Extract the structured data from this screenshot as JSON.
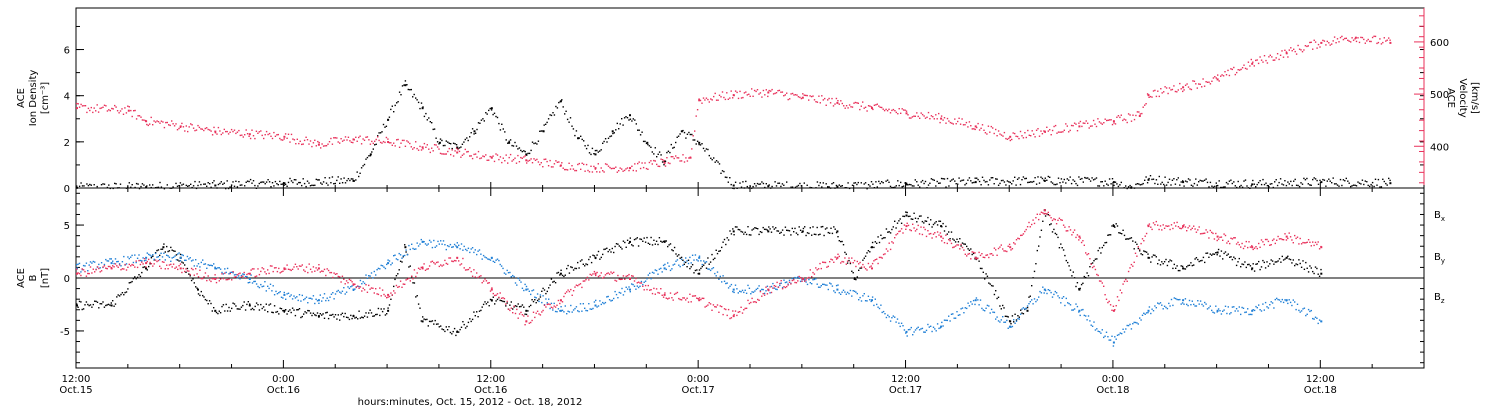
{
  "colors": {
    "black": "#000000",
    "red": "#e8305a",
    "blue": "#1f7fd6"
  },
  "chart_data": [
    {
      "type": "scatter",
      "panel": "top",
      "left_axis": {
        "label_lines": [
          "ACE",
          "Ion Density",
          "[cm⁻³]"
        ],
        "ylim": [
          0,
          7.8
        ],
        "ticks": [
          0,
          2,
          4,
          6
        ],
        "tick_labels": [
          "0",
          "2",
          "4",
          "6"
        ]
      },
      "right_axis": {
        "label_lines": [
          "ACE",
          "Velocity",
          "[km/s]"
        ],
        "ylim": [
          320,
          665
        ],
        "ticks": [
          400,
          500,
          600
        ],
        "tick_labels": [
          "400",
          "500",
          "600"
        ],
        "color": "#e8305a"
      },
      "xlim": [
        0,
        78
      ],
      "series": [
        {
          "axis": "left",
          "color": "#000000",
          "x": [
            0,
            4,
            8,
            12,
            16,
            17,
            18,
            19,
            20,
            21,
            22,
            23,
            24,
            25,
            26,
            27,
            28,
            29,
            30,
            31,
            32,
            33,
            34,
            35,
            36,
            38,
            40,
            44,
            48,
            52,
            56,
            60,
            61,
            62,
            64,
            68,
            72,
            76
          ],
          "y": [
            0.05,
            0.08,
            0.15,
            0.25,
            0.35,
            1.5,
            3.0,
            4.5,
            3.5,
            2.0,
            1.8,
            2.5,
            3.5,
            2.0,
            1.5,
            2.5,
            3.8,
            2.2,
            1.5,
            2.5,
            3.2,
            2.0,
            1.2,
            2.5,
            2.0,
            0.15,
            0.12,
            0.1,
            0.2,
            0.3,
            0.35,
            0.3,
            0.05,
            0.4,
            0.3,
            0.2,
            0.3,
            0.25
          ]
        },
        {
          "axis": "right",
          "color": "#e8305a",
          "x": [
            0,
            3,
            4,
            6,
            8,
            10,
            12,
            14,
            16,
            18,
            20,
            22,
            24,
            26,
            28,
            30,
            32,
            34,
            35.5,
            36,
            38,
            40,
            42,
            44,
            46,
            48,
            50,
            52,
            54,
            56,
            58,
            60,
            61.5,
            62,
            64,
            66,
            68,
            70,
            72,
            74,
            76
          ],
          "y": [
            475,
            470,
            450,
            440,
            430,
            425,
            420,
            405,
            415,
            410,
            400,
            390,
            380,
            375,
            365,
            360,
            360,
            370,
            380,
            490,
            500,
            505,
            495,
            485,
            475,
            465,
            455,
            440,
            420,
            430,
            440,
            450,
            460,
            500,
            515,
            530,
            560,
            580,
            600,
            610,
            600
          ]
        }
      ]
    },
    {
      "type": "scatter",
      "panel": "bottom",
      "left_axis": {
        "label_lines": [
          "ACE",
          "B",
          "[nT]"
        ],
        "ylim": [
          -8.5,
          8.5
        ],
        "ticks": [
          -5,
          0,
          5
        ],
        "tick_labels": [
          "-5",
          "0",
          "5"
        ]
      },
      "xlim": [
        0,
        78
      ],
      "xticks": [
        0,
        12,
        24,
        36,
        48,
        60,
        72
      ],
      "xtick_labels_top": [
        "12:00",
        "0:00",
        "12:00",
        "0:00",
        "12:00",
        "0:00",
        "12:00"
      ],
      "xtick_labels_bottom": [
        "Oct.15",
        "Oct.16",
        "Oct.16",
        "Oct.17",
        "Oct.17",
        "Oct.18",
        "Oct.18"
      ],
      "xlabel": "hours:minutes, Oct. 15, 2012 - Oct. 18, 2012",
      "legend": [
        "B",
        "B",
        "B"
      ],
      "legend_subscripts": [
        "x",
        "y",
        "z"
      ],
      "legend_placement": "right",
      "series": [
        {
          "name": "Bx",
          "color": "#000000",
          "x": [
            0,
            2,
            4,
            5,
            6,
            7,
            8,
            10,
            12,
            14,
            16,
            18,
            19,
            20,
            22,
            24,
            26,
            28,
            30,
            32,
            34,
            36,
            38,
            40,
            42,
            44,
            45,
            46,
            48,
            50,
            52,
            54,
            55,
            56,
            58,
            60,
            62,
            64,
            66,
            68,
            70,
            72
          ],
          "y": [
            -2.5,
            -2.5,
            1,
            3,
            2,
            -1,
            -3,
            -2.5,
            -3,
            -3.5,
            -3.5,
            -3,
            3,
            -4,
            -5,
            -2,
            -3,
            0.5,
            2,
            3.5,
            3.5,
            0.5,
            4.5,
            4.5,
            4.5,
            4.5,
            0,
            3,
            6,
            5,
            2,
            -4,
            -3,
            6.5,
            -1,
            5,
            2,
            1,
            2.5,
            1,
            2,
            0.5
          ]
        },
        {
          "name": "By",
          "color": "#1f7fd6",
          "x": [
            0,
            2,
            4,
            6,
            8,
            10,
            12,
            14,
            16,
            18,
            20,
            22,
            24,
            26,
            28,
            30,
            32,
            34,
            36,
            38,
            40,
            42,
            44,
            46,
            48,
            50,
            52,
            54,
            56,
            58,
            60,
            62,
            64,
            66,
            68,
            70,
            72
          ],
          "y": [
            1,
            1.5,
            2,
            2,
            1,
            0,
            -1.5,
            -2,
            -1,
            1.5,
            3.5,
            3,
            2,
            -1,
            -3,
            -2.5,
            -1,
            1,
            2,
            -1,
            -1,
            0,
            -1,
            -2,
            -5,
            -4.5,
            -2,
            -4.5,
            -1,
            -3,
            -6,
            -3,
            -2,
            -3,
            -3,
            -2,
            -4
          ]
        },
        {
          "name": "Bz",
          "color": "#e8305a",
          "x": [
            0,
            2,
            4,
            6,
            8,
            10,
            12,
            14,
            16,
            18,
            20,
            22,
            24,
            26,
            28,
            30,
            32,
            34,
            36,
            38,
            40,
            42,
            44,
            46,
            48,
            50,
            52,
            54,
            56,
            58,
            60,
            62,
            64,
            66,
            68,
            70,
            72
          ],
          "y": [
            0.5,
            1,
            1.5,
            1,
            0,
            0.5,
            1,
            1,
            -0.5,
            -1.5,
            1,
            2,
            -1,
            -4,
            -2,
            0.5,
            0,
            -1.5,
            -2,
            -3.5,
            -1,
            0,
            2,
            1,
            5,
            4,
            2,
            3,
            6.5,
            4,
            -3,
            5,
            5,
            4,
            3,
            4,
            3
          ]
        }
      ]
    }
  ]
}
